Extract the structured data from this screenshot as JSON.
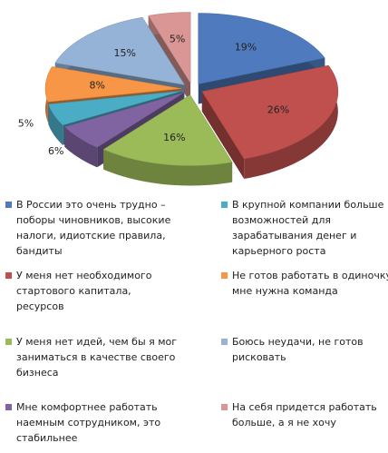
{
  "chart_data": {
    "type": "pie",
    "categories": [
      "В России это очень трудно – поборы чиновников, высокие налоги, идиотские правила, бандиты",
      "У меня нет необходимого стартового капитала, ресурсов",
      "У меня нет идей, чем бы я мог заниматься в качестве своего бизнеса",
      "Мне комфортнее работать наемным сотрудником, это стабильнее",
      "В крупной компании больше возможностей для зарабатывания денег и карьерного роста",
      "Не готов работать в одиночку, мне нужна команда",
      "Боюсь неудачи, не готов рисковать",
      "На себя придется работать больше, а я не хочу"
    ],
    "values": [
      19,
      26,
      16,
      6,
      5,
      8,
      15,
      5
    ],
    "value_labels": [
      "19%",
      "26%",
      "16%",
      "6%",
      "5%",
      "8%",
      "15%",
      "5%"
    ],
    "colors": [
      "#4f7bbe",
      "#c0504d",
      "#9bbb59",
      "#8064a2",
      "#4bacc6",
      "#f79646",
      "#95b3d7",
      "#d99694"
    ]
  }
}
